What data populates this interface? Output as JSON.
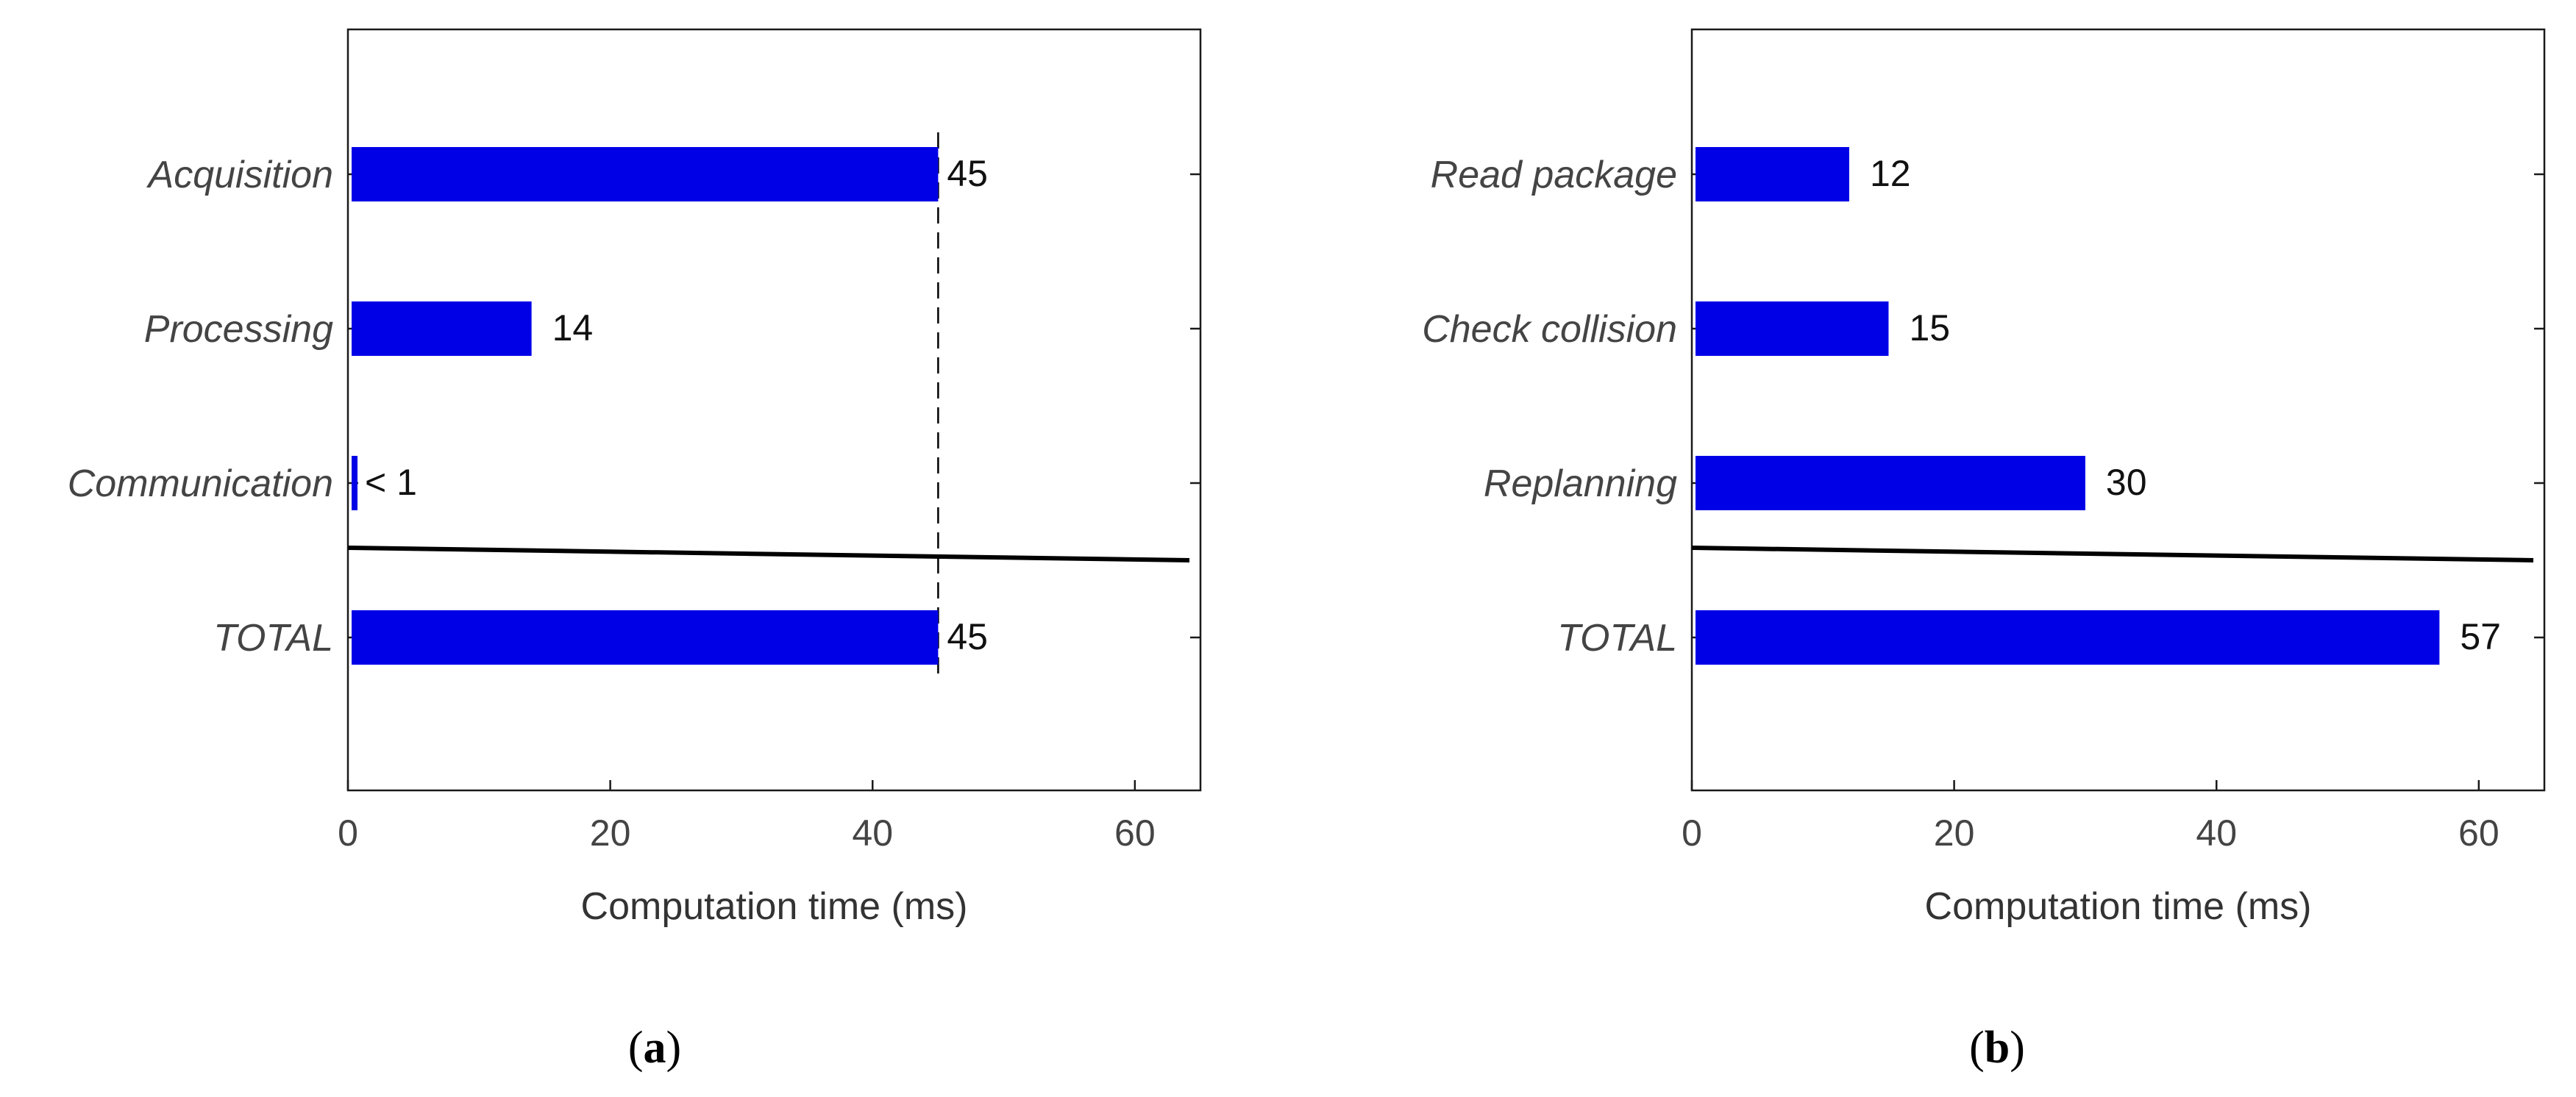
{
  "chart_data": [
    {
      "type": "bar",
      "orientation": "horizontal",
      "categories": [
        "Acquisition",
        "Processing",
        "Communication",
        "TOTAL"
      ],
      "values": [
        45,
        14,
        0.5,
        45
      ],
      "value_labels": [
        "45",
        "14",
        "< 1",
        "45"
      ],
      "xlabel": "Computation time (ms)",
      "xlim": [
        0,
        65
      ],
      "xticks": [
        0,
        20,
        40,
        60
      ],
      "bar_color": "#0000e6",
      "reference_line_x": 45,
      "separator": true,
      "grid": false,
      "panel_label": "a"
    },
    {
      "type": "bar",
      "orientation": "horizontal",
      "categories": [
        "Read package",
        "Check collision",
        "Replanning",
        "TOTAL"
      ],
      "values": [
        12,
        15,
        30,
        57
      ],
      "value_labels": [
        "12",
        "15",
        "30",
        "57"
      ],
      "xlabel": "Computation time (ms)",
      "xlim": [
        0,
        65
      ],
      "xticks": [
        0,
        20,
        40,
        60
      ],
      "bar_color": "#0000e6",
      "reference_line_x": null,
      "separator": true,
      "grid": false,
      "panel_label": "b"
    }
  ]
}
